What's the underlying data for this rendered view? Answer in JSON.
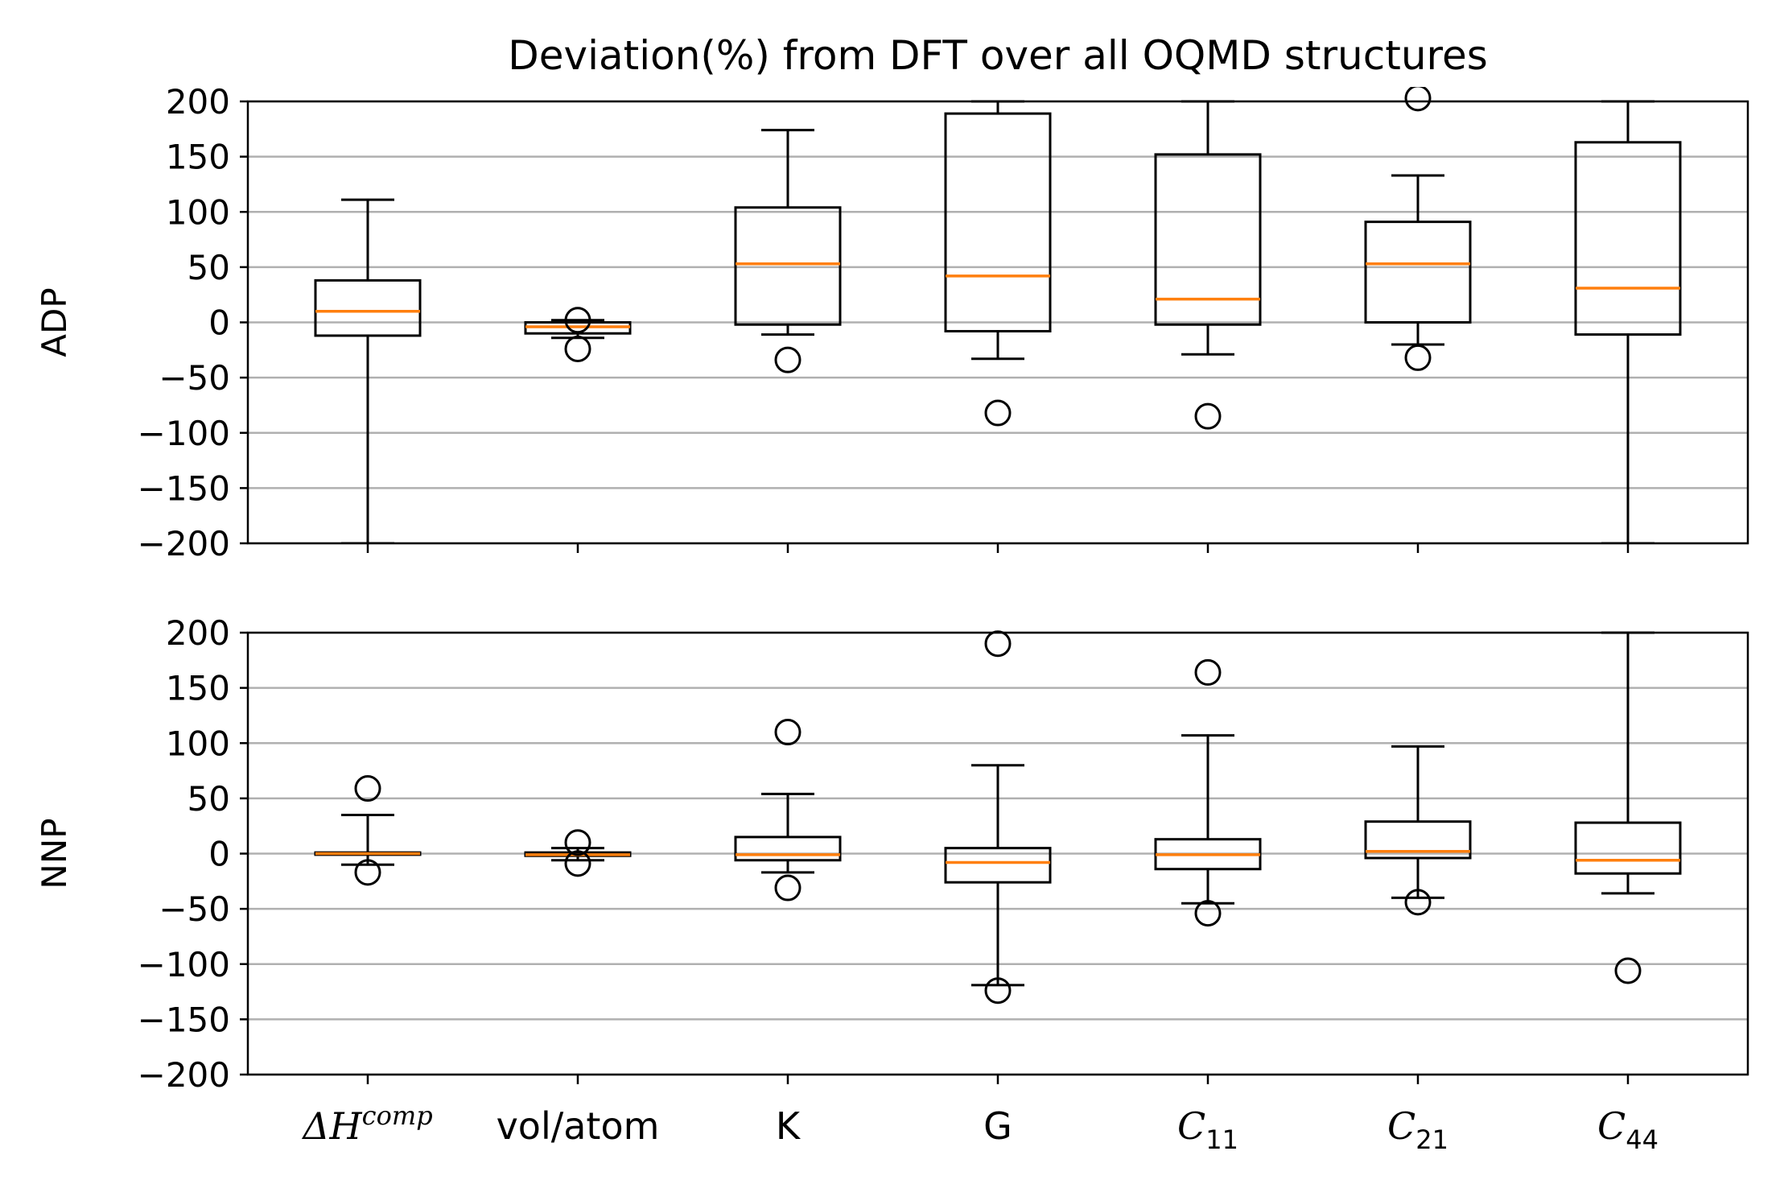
{
  "chart_data": {
    "type": "box",
    "title": "Deviation(%) from DFT over all OQMD structures",
    "categories": [
      "ΔH^comp",
      "vol/atom",
      "K",
      "G",
      "C_11",
      "C_21",
      "C_44"
    ],
    "category_labels": [
      {
        "main": "ΔH",
        "sup": "comp",
        "italic": true
      },
      {
        "main": "vol/atom",
        "sub": "",
        "italic": false
      },
      {
        "main": "K",
        "italic": false
      },
      {
        "main": "G",
        "italic": false
      },
      {
        "main": "C",
        "sub": "11",
        "italic": true
      },
      {
        "main": "C",
        "sub": "21",
        "italic": true
      },
      {
        "main": "C",
        "sub": "44",
        "italic": true
      }
    ],
    "ylim": [
      -200,
      200
    ],
    "yticks": [
      -200,
      -150,
      -100,
      -50,
      0,
      50,
      100,
      150,
      200
    ],
    "grid": "y",
    "colors": {
      "box": "#000000",
      "median": "#ff7f0e",
      "grid": "#b0b0b0"
    },
    "panels": [
      {
        "ylabel": "ADP",
        "boxes": [
          {
            "q1": -12,
            "median": 10,
            "q3": 38,
            "whislo": -200,
            "whishi": 111,
            "fliers": []
          },
          {
            "q1": -10,
            "median": -4,
            "q3": 0,
            "whislo": -14,
            "whishi": 2,
            "fliers": [
              2,
              -24
            ]
          },
          {
            "q1": -2,
            "median": 53,
            "q3": 104,
            "whislo": -11,
            "whishi": 174,
            "fliers": [
              -34
            ]
          },
          {
            "q1": -8,
            "median": 42,
            "q3": 189,
            "whislo": -33,
            "whishi": 200,
            "fliers": [
              -82
            ]
          },
          {
            "q1": -2,
            "median": 21,
            "q3": 152,
            "whislo": -29,
            "whishi": 200,
            "fliers": [
              -85
            ]
          },
          {
            "q1": 0,
            "median": 53,
            "q3": 91,
            "whislo": -20,
            "whishi": 133,
            "fliers": [
              -32,
              203
            ]
          },
          {
            "q1": -11,
            "median": 31,
            "q3": 163,
            "whislo": -200,
            "whishi": 200,
            "fliers": []
          }
        ]
      },
      {
        "ylabel": "NNP",
        "boxes": [
          {
            "q1": -1,
            "median": 0,
            "q3": 1,
            "whislo": -10,
            "whishi": 35,
            "fliers": [
              59,
              -17
            ]
          },
          {
            "q1": -2,
            "median": -1,
            "q3": 1,
            "whislo": -6,
            "whishi": 5,
            "fliers": [
              10,
              -9
            ]
          },
          {
            "q1": -6,
            "median": -1,
            "q3": 15,
            "whislo": -17,
            "whishi": 54,
            "fliers": [
              110,
              -31
            ]
          },
          {
            "q1": -26,
            "median": -8,
            "q3": 5,
            "whislo": -119,
            "whishi": 80,
            "fliers": [
              190,
              -124
            ]
          },
          {
            "q1": -14,
            "median": -1,
            "q3": 13,
            "whislo": -45,
            "whishi": 107,
            "fliers": [
              164,
              -54
            ]
          },
          {
            "q1": -4,
            "median": 2,
            "q3": 29,
            "whislo": -40,
            "whishi": 97,
            "fliers": [
              -44
            ]
          },
          {
            "q1": -18,
            "median": -6,
            "q3": 28,
            "whislo": -36,
            "whishi": 200,
            "fliers": [
              -106
            ]
          }
        ]
      }
    ]
  }
}
